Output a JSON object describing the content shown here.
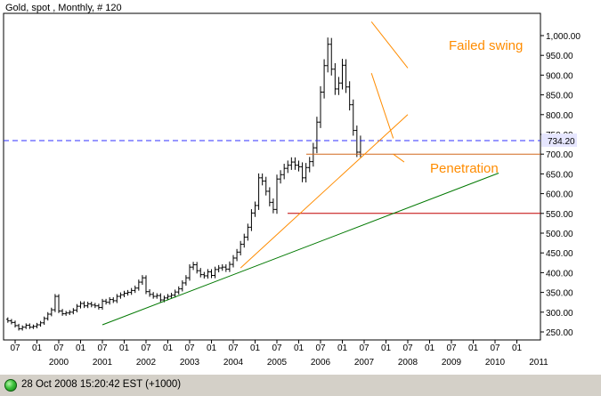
{
  "chart_data": {
    "type": "ohlc",
    "title": "Gold, spot , Monthly, # 120",
    "y_axis": {
      "side": "right",
      "range": [
        240,
        1060
      ],
      "ticks": [
        "250.00",
        "300.00",
        "350.00",
        "400.00",
        "450.00",
        "500.00",
        "550.00",
        "600.00",
        "650.00",
        "700.00",
        "750.00",
        "800.00",
        "850.00",
        "900.00",
        "950.00",
        "1,000.00"
      ],
      "tick_values": [
        250,
        300,
        350,
        400,
        450,
        500,
        550,
        600,
        650,
        700,
        750,
        800,
        850,
        900,
        950,
        1000
      ]
    },
    "x_axis": {
      "months": [
        "01",
        "07",
        "01",
        "07",
        "01",
        "07",
        "01",
        "07",
        "01",
        "07",
        "01",
        "07",
        "01",
        "07",
        "01",
        "07",
        "01",
        "07",
        "01",
        "07",
        "01",
        "07",
        "01",
        "07",
        "01"
      ],
      "years": [
        "2000",
        "2001",
        "2002",
        "2003",
        "2004",
        "2005",
        "2006",
        "2007",
        "2008",
        "2009",
        "2010",
        "2011"
      ]
    },
    "price_label": "734.20",
    "price_line_value": 734.2,
    "horizontal_lines": [
      {
        "value": 700,
        "color": "#d2691e"
      },
      {
        "value": 550,
        "color": "#c00000"
      }
    ],
    "trendlines": [
      {
        "color": "#007800",
        "from": [
          "2002-01",
          268
        ],
        "to": [
          "2011-02",
          652
        ]
      },
      {
        "color": "#ff8c00",
        "from": [
          "2005-03",
          412
        ],
        "to": [
          "2009-01",
          800
        ]
      },
      {
        "color": "#ff8c00",
        "from": [
          "2008-03",
          1035
        ],
        "to": [
          "2009-01",
          918
        ]
      },
      {
        "color": "#ff8c00",
        "from": [
          "2008-03",
          905
        ],
        "to": [
          "2008-09",
          740
        ]
      },
      {
        "color": "#ff8c00",
        "from": [
          "2008-09",
          700
        ],
        "to": [
          "2008-12",
          680
        ]
      }
    ],
    "annotations": [
      "Failed swing",
      "Penetration"
    ],
    "series_monthly_close": [
      290,
      288,
      291,
      287,
      284,
      285,
      283,
      281,
      280,
      282,
      278,
      274,
      266,
      258,
      262,
      267,
      262,
      264,
      268,
      273,
      284,
      295,
      306,
      340,
      303,
      296,
      298,
      300,
      305,
      315,
      322,
      316,
      321,
      318,
      316,
      312,
      328,
      325,
      332,
      329,
      340,
      344,
      348,
      350,
      355,
      361,
      376,
      387,
      352,
      345,
      340,
      342,
      331,
      336,
      340,
      343,
      351,
      359,
      374,
      387,
      414,
      420,
      405,
      395,
      392,
      402,
      393,
      408,
      412,
      414,
      409,
      421,
      437,
      452,
      472,
      490,
      515,
      551,
      570,
      640,
      632,
      606,
      578,
      560,
      637,
      648,
      664,
      672,
      680,
      672,
      668,
      640,
      666,
      681,
      716,
      781,
      857,
      924,
      978,
      915,
      865,
      880,
      925,
      870,
      825,
      760,
      705,
      734
    ]
  },
  "status": {
    "text": "28 Oct 2008 15:20:42  EST (+1000)"
  }
}
